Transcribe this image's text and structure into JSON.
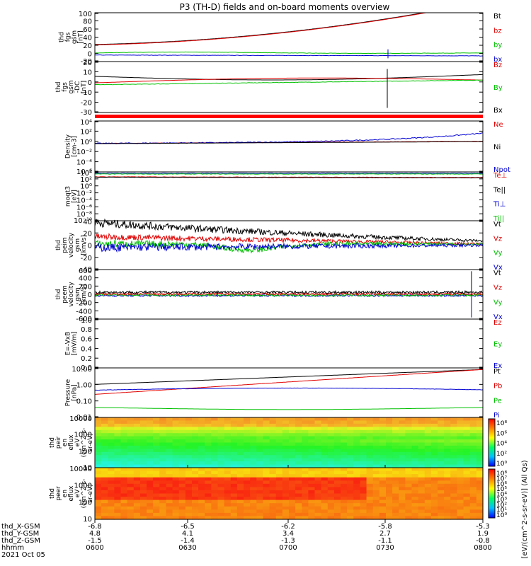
{
  "title": "P3 (TH-D) fields and on-board moments overview",
  "colors": {
    "black": "#000000",
    "red": "#e00000",
    "green": "#00c000",
    "blue": "#0000d0"
  },
  "panels": [
    {
      "id": "fgs_mag",
      "ylabel": [
        "thd",
        "fgs",
        "gsm",
        "[nT]"
      ],
      "ylim": [
        -20,
        100
      ],
      "ticks": [
        "100",
        "80",
        "60",
        "40",
        "20",
        "0",
        "-20"
      ],
      "legend": [
        {
          "label": "Bt",
          "color": "black"
        },
        {
          "label": "bz",
          "color": "red"
        },
        {
          "label": "by",
          "color": "green"
        },
        {
          "label": "bx",
          "color": "blue"
        }
      ]
    },
    {
      "id": "fgs_dc",
      "ylabel": [
        "thd",
        "fgs",
        "gsm",
        "-DC",
        "[nT]"
      ],
      "ylim": [
        -35,
        20
      ],
      "ticks": [
        "20",
        "10",
        "0",
        "-10",
        "-20",
        "-30"
      ],
      "legend": [
        {
          "label": "Bz",
          "color": "red"
        },
        {
          "label": "By",
          "color": "green"
        },
        {
          "label": "Bx",
          "color": "black"
        }
      ]
    },
    {
      "id": "density",
      "ylabel": [
        "Density",
        "[cm-3]"
      ],
      "ticks": [
        "10⁴",
        "10²",
        "10⁰",
        "10⁻²",
        "10⁻⁴",
        "10⁻⁶"
      ],
      "legend": [
        {
          "label": "Ne",
          "color": "red"
        },
        {
          "label": "Ni",
          "color": "black"
        },
        {
          "label": "Npot",
          "color": "blue"
        }
      ]
    },
    {
      "id": "temp",
      "ylabel": [
        "moqt3",
        "[eV]"
      ],
      "ticks": [
        "10⁴",
        "10²",
        "10⁰",
        "10⁻²",
        "10⁻⁴",
        "10⁻⁶",
        "10⁻⁸",
        "10⁻¹⁰"
      ],
      "legend": [
        {
          "label": "Te⊥",
          "color": "red"
        },
        {
          "label": "Te||",
          "color": "black"
        },
        {
          "label": "Ti⊥",
          "color": "blue"
        },
        {
          "label": "Ti||",
          "color": "green"
        }
      ]
    },
    {
      "id": "peim",
      "ylabel": [
        "thd",
        "peim",
        "velocity",
        "gsm",
        "[km/s]"
      ],
      "ylim": [
        -40,
        40
      ],
      "ticks": [
        "40",
        "20",
        "0",
        "-20",
        "-40"
      ],
      "legend": [
        {
          "label": "Vt",
          "color": "black"
        },
        {
          "label": "Vz",
          "color": "red"
        },
        {
          "label": "Vy",
          "color": "green"
        },
        {
          "label": "Vx",
          "color": "blue"
        }
      ]
    },
    {
      "id": "peem",
      "ylabel": [
        "thd",
        "peem",
        "velocity",
        "gsm",
        "[km/s]"
      ],
      "ylim": [
        -600,
        600
      ],
      "ticks": [
        "600",
        "400",
        "200",
        "0",
        "-200",
        "-400",
        "-600"
      ],
      "legend": [
        {
          "label": "Vt",
          "color": "black"
        },
        {
          "label": "Vz",
          "color": "red"
        },
        {
          "label": "Vy",
          "color": "green"
        },
        {
          "label": "Vx",
          "color": "blue"
        }
      ]
    },
    {
      "id": "efield",
      "ylabel": [
        "E=-VxB",
        "[mV/m]"
      ],
      "ylim": [
        0,
        1
      ],
      "ticks": [
        "1.0",
        "0.8",
        "0.6",
        "0.4",
        "0.2",
        "0.0"
      ],
      "legend": [
        {
          "label": "Ez",
          "color": "red"
        },
        {
          "label": "Ey",
          "color": "green"
        },
        {
          "label": "Ex",
          "color": "blue"
        }
      ]
    },
    {
      "id": "pressure",
      "ylabel": [
        "Pressure",
        "[nPa]"
      ],
      "ticks": [
        "10.00",
        "1.00",
        "0.10",
        "0.01"
      ],
      "legend": [
        {
          "label": "Pt",
          "color": "black"
        },
        {
          "label": "Pb",
          "color": "red"
        },
        {
          "label": "Pe",
          "color": "green"
        },
        {
          "label": "Pi",
          "color": "blue"
        }
      ]
    },
    {
      "id": "peir",
      "ylabel": [
        "thd",
        "peir",
        "en",
        "eflux",
        "eV",
        "(cm^2-s-",
        "sr-eV)"
      ],
      "ticks": [
        "10000",
        "1000",
        "100",
        "10"
      ]
    },
    {
      "id": "peer",
      "ylabel": [
        "thd",
        "peer",
        "en",
        "eflux",
        "eV",
        "(cm^2-s-",
        "sr-eV)"
      ],
      "ticks": [
        "10000",
        "1000",
        "100",
        "10"
      ]
    }
  ],
  "colorbar": {
    "label": "[eV/(cm^2-s-sr-eV)] (All Qs)",
    "ticks_ion": [
      "10⁸",
      "10⁶",
      "10⁴",
      "10²",
      "10⁰"
    ],
    "ticks_elec": [
      "10⁸",
      "10⁷",
      "10⁶",
      "10⁵",
      "10⁴",
      "10³",
      "10²",
      "10¹",
      "10⁰"
    ]
  },
  "xaxis": {
    "rows": [
      {
        "label": "thd_X-GSM",
        "values": [
          "-6.8",
          "-6.5",
          "-6.2",
          "-5.8",
          "-5.3"
        ]
      },
      {
        "label": "thd_Y-GSM",
        "values": [
          "4.8",
          "4.1",
          "3.4",
          "2.7",
          "1.9"
        ]
      },
      {
        "label": "thd_Z-GSM",
        "values": [
          "-1.5",
          "-1.4",
          "-1.3",
          "-1.1",
          "-0.8"
        ]
      },
      {
        "label": "hhmm",
        "values": [
          "0600",
          "0630",
          "0700",
          "0730",
          "0800"
        ]
      }
    ],
    "date": "2021 Oct 05"
  },
  "chart_data": {
    "type": "line",
    "title": "P3 (TH-D) fields and on-board moments overview",
    "x": [
      "0600",
      "0630",
      "0700",
      "0730",
      "0800"
    ],
    "series": [
      {
        "name": "Bt",
        "values": [
          22,
          30,
          45,
          68,
          110
        ]
      },
      {
        "name": "bz",
        "values": [
          21,
          29,
          44,
          67,
          108
        ]
      },
      {
        "name": "by",
        "values": [
          1,
          2,
          4,
          3,
          -2
        ]
      },
      {
        "name": "bx",
        "values": [
          -3,
          -4,
          -5,
          -6,
          -6
        ]
      },
      {
        "name": "Ne",
        "values": [
          0.3,
          0.4,
          0.6,
          0.8,
          1.0
        ]
      },
      {
        "name": "Npot",
        "values": [
          0.3,
          0.4,
          0.7,
          3,
          25
        ]
      },
      {
        "name": "Pt",
        "values": [
          1.0,
          1.6,
          2.6,
          4.0,
          8.0
        ]
      },
      {
        "name": "Pb",
        "values": [
          0.25,
          0.5,
          1.2,
          3.0,
          8.0
        ]
      },
      {
        "name": "Pe",
        "values": [
          0.45,
          0.55,
          0.6,
          0.6,
          0.55
        ]
      },
      {
        "name": "Pi",
        "values": [
          0.04,
          0.03,
          0.03,
          0.035,
          0.03
        ]
      }
    ]
  }
}
